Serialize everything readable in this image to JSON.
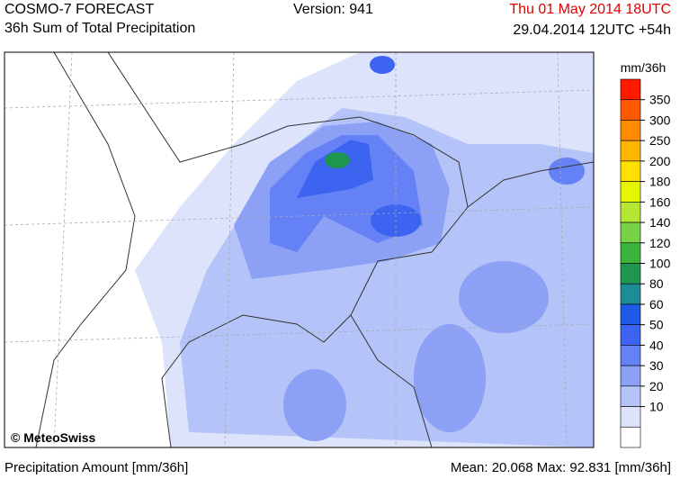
{
  "header": {
    "title": "COSMO-7 FORECAST",
    "subtitle": "36h Sum of Total Precipitation",
    "version": "Version: 941",
    "valid_time": "Thu 01 May 2014 18UTC",
    "run_time": "29.04.2014 12UTC +54h"
  },
  "map": {
    "copyright": "© MeteoSwiss"
  },
  "legend": {
    "unit": "mm/36h",
    "colors": [
      "#ff1a00",
      "#ff5a00",
      "#ff8c00",
      "#ffb400",
      "#ffe000",
      "#e6f500",
      "#b4e632",
      "#78d246",
      "#3cb43c",
      "#1e9650",
      "#1e8c96",
      "#1e5ae6",
      "#3c64f0",
      "#6482f5",
      "#8ca0f5",
      "#b4c3f8",
      "#dce3fb",
      "#ffffff"
    ],
    "labels": [
      350,
      300,
      250,
      200,
      180,
      160,
      140,
      120,
      100,
      80,
      60,
      50,
      40,
      30,
      20,
      10
    ]
  },
  "footer": {
    "left": "Precipitation Amount [mm/36h]",
    "right": "Mean:  20.068 Max:  92.831 [mm/36h]"
  }
}
